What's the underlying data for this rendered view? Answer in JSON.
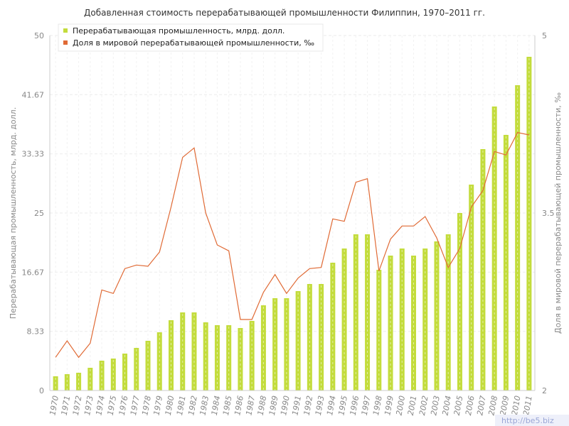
{
  "chart_data": {
    "type": "bar",
    "title": "Добавленная стоимость перерабатывающей промышленности Филиппин, 1970–2011 гг.",
    "ylabel": "Перерабатывающая промышленность, млрд. долл.",
    "y2label": "Доля в мировой перерабатывающей промышленности, ‰",
    "ylim": [
      0,
      50
    ],
    "y2lim": [
      2,
      5
    ],
    "yticks": [
      "0",
      "8.33",
      "16.67",
      "25",
      "33.33",
      "41.67",
      "50"
    ],
    "y2ticks": [
      "2",
      "3.5",
      "5"
    ],
    "grid": true,
    "legend_position": "top-left",
    "categories": [
      "1970",
      "1971",
      "1972",
      "1973",
      "1974",
      "1975",
      "1976",
      "1977",
      "1978",
      "1979",
      "1980",
      "1981",
      "1982",
      "1983",
      "1984",
      "1985",
      "1986",
      "1987",
      "1988",
      "1989",
      "1990",
      "1991",
      "1992",
      "1993",
      "1994",
      "1995",
      "1996",
      "1997",
      "1998",
      "1999",
      "2000",
      "2001",
      "2002",
      "2003",
      "2004",
      "2005",
      "2006",
      "2007",
      "2008",
      "2009",
      "2010",
      "2011"
    ],
    "series": [
      {
        "name": "Перерабатывающая промышленность, млрд. долл.",
        "type": "bar",
        "axis": "left",
        "color": "#c3dc3c",
        "values": [
          2.0,
          2.3,
          2.5,
          3.2,
          4.2,
          4.5,
          5.2,
          6.0,
          7.0,
          8.2,
          9.9,
          11.0,
          11.0,
          9.6,
          9.2,
          9.2,
          8.8,
          9.8,
          12.0,
          13.0,
          13.0,
          14.0,
          15.0,
          15.0,
          18.0,
          20.0,
          22.0,
          22.0,
          17.0,
          19.0,
          20.0,
          19.0,
          20.0,
          21.0,
          22.0,
          25.0,
          29.0,
          34.0,
          40.0,
          36.0,
          43.0,
          47.0
        ]
      },
      {
        "name": "Доля в мировой перерабатывающей промышленности, ‰",
        "type": "line",
        "axis": "right",
        "color": "#e06a35",
        "values": [
          2.28,
          2.42,
          2.28,
          2.4,
          2.85,
          2.82,
          3.03,
          3.06,
          3.05,
          3.17,
          3.55,
          3.97,
          4.05,
          3.5,
          3.23,
          3.18,
          2.6,
          2.6,
          2.83,
          2.98,
          2.82,
          2.95,
          3.03,
          3.04,
          3.45,
          3.43,
          3.76,
          3.79,
          3.01,
          3.28,
          3.39,
          3.39,
          3.47,
          3.29,
          3.04,
          3.2,
          3.55,
          3.69,
          4.02,
          3.99,
          4.18,
          4.16
        ]
      }
    ]
  },
  "watermark": "http://be5.biz"
}
